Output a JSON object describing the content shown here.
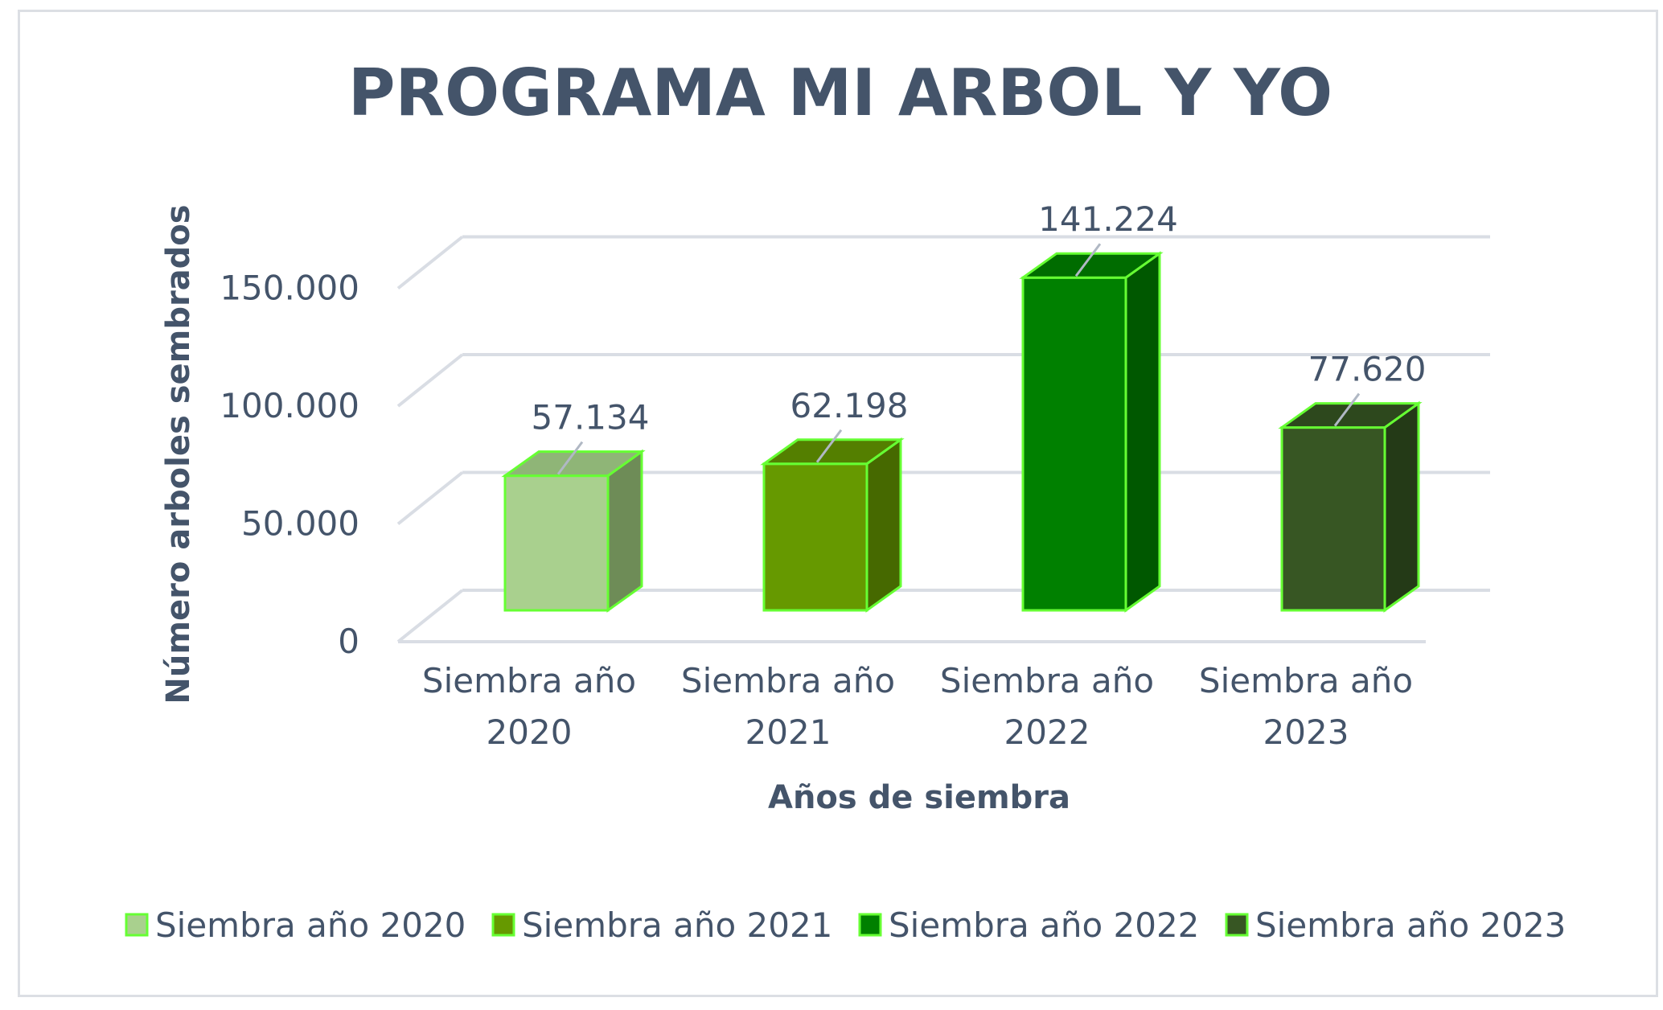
{
  "chart_data": {
    "type": "bar",
    "title": "PROGRAMA MI ARBOL Y YO",
    "xlabel": "Años de siembra",
    "ylabel": "Número arboles sembrados",
    "categories": [
      [
        "Siembra año",
        "2020"
      ],
      [
        "Siembra año",
        "2021"
      ],
      [
        "Siembra año",
        "2022"
      ],
      [
        "Siembra año",
        "2023"
      ]
    ],
    "values": [
      57134,
      62198,
      141224,
      77620
    ],
    "data_labels": [
      "57.134",
      "62.198",
      "141.224",
      "77.620"
    ],
    "yticks": [
      0,
      50000,
      100000,
      150000
    ],
    "ytick_labels": [
      "0",
      "50.000",
      "100.000",
      "150.000"
    ],
    "ylim": [
      0,
      150000
    ],
    "grid": true,
    "legend_position": "bottom",
    "legend": [
      "Siembra año 2020",
      "Siembra año 2021",
      "Siembra año 2022",
      "Siembra año 2023"
    ],
    "colors": [
      {
        "front": "#a9d08e",
        "side": "#6e8c57",
        "top": "#8fb577"
      },
      {
        "front": "#669900",
        "side": "#466900",
        "top": "#547f00"
      },
      {
        "front": "#008000",
        "side": "#005800",
        "top": "#006c00"
      },
      {
        "front": "#375623",
        "side": "#243a17",
        "top": "#2d481d"
      }
    ],
    "edge_color": "#66ff33",
    "text_color": "#44546a",
    "grid_color": "#d9dde4"
  }
}
